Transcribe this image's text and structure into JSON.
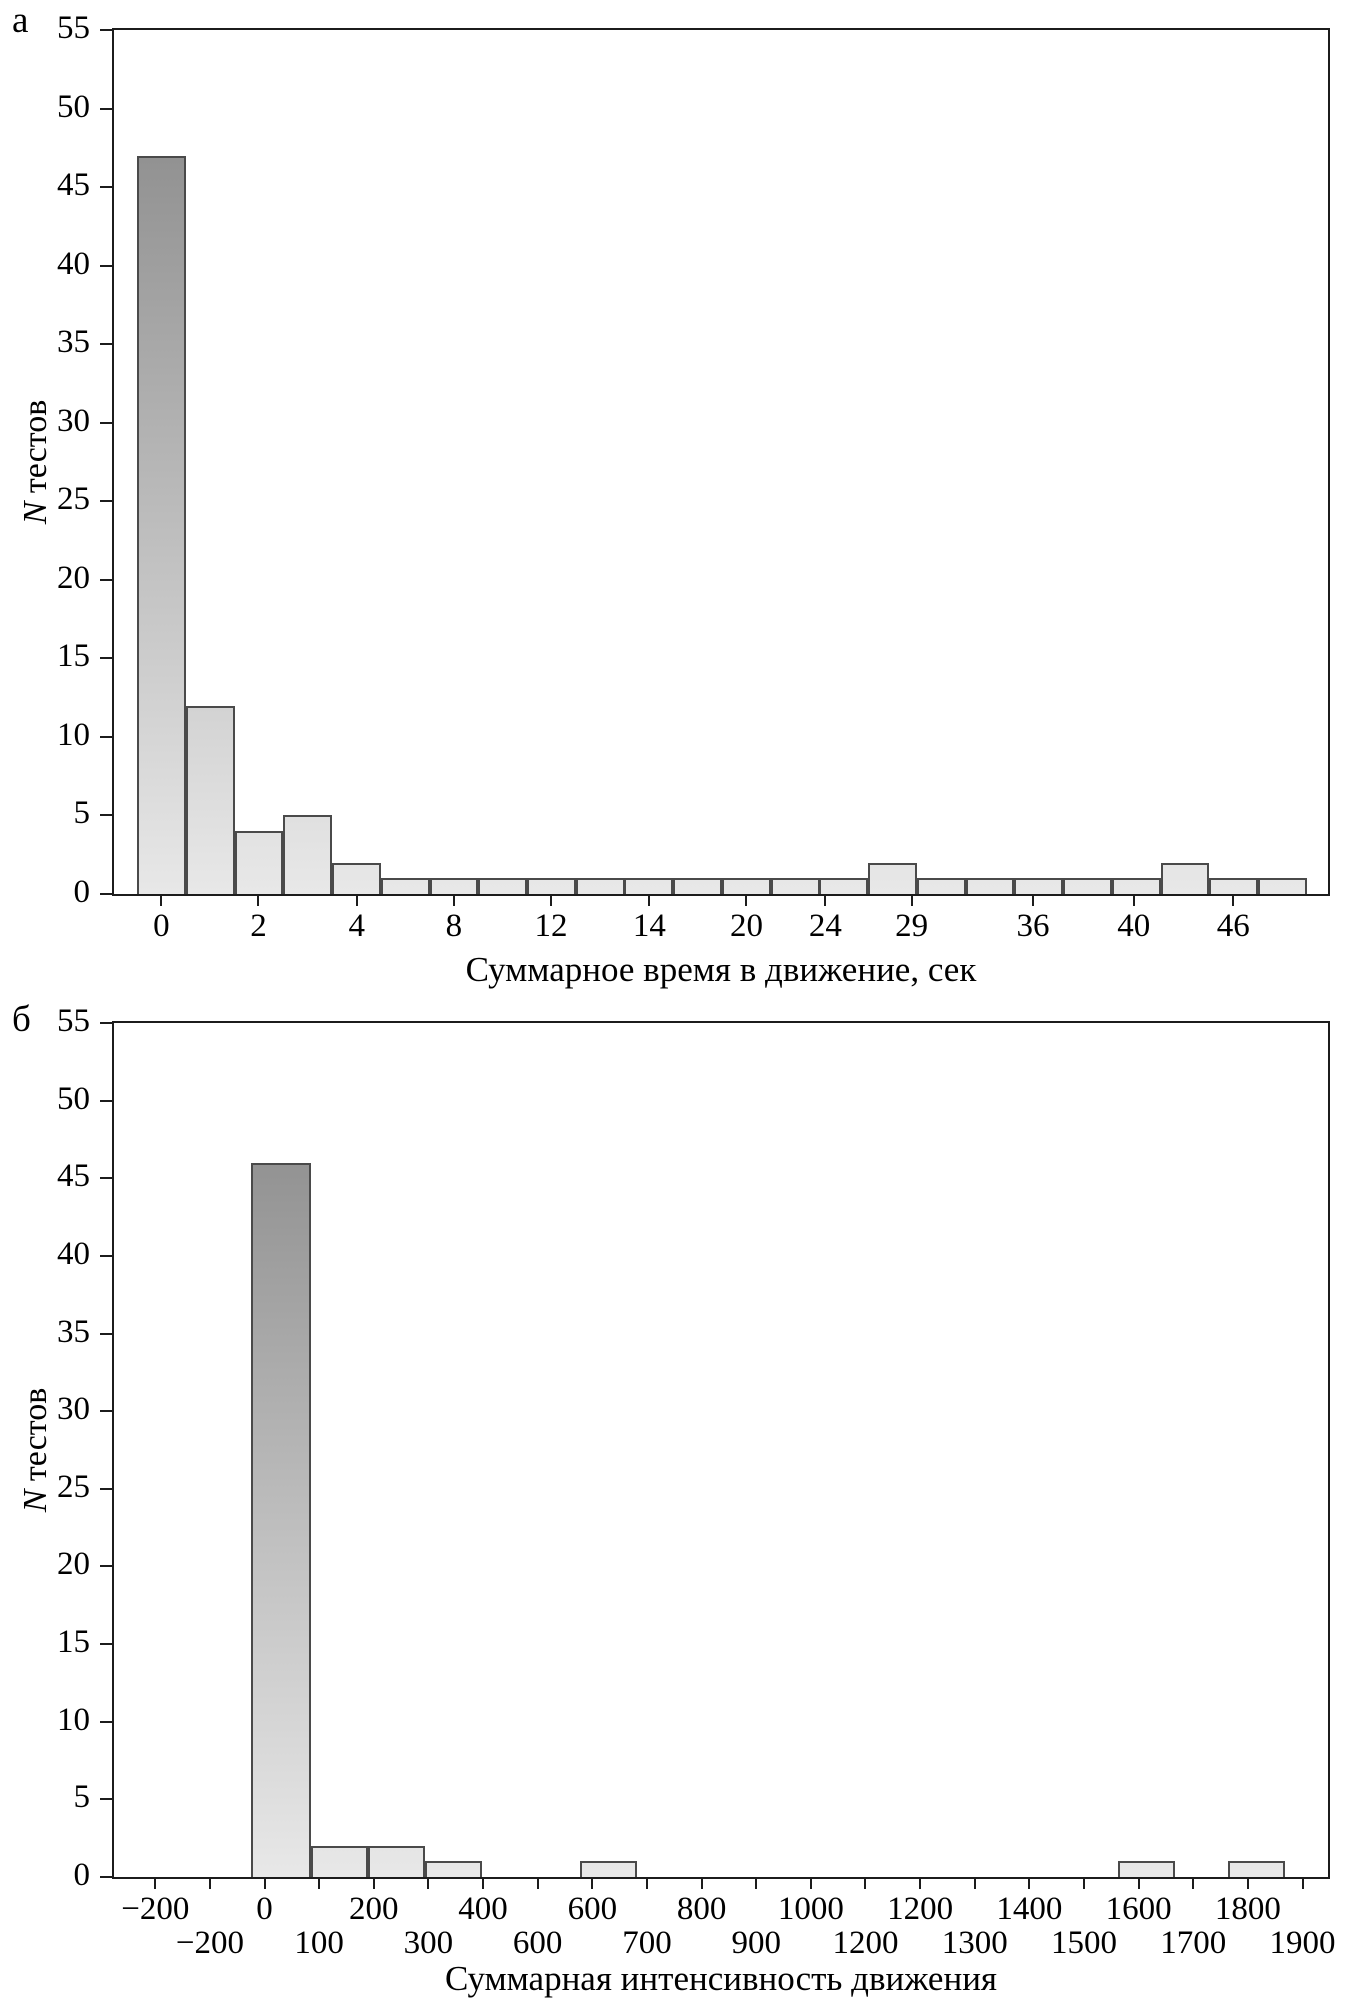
{
  "figure": {
    "panels": [
      {
        "panel_label": "а",
        "ylabel_italic": "N",
        "ylabel_rest": " тестов",
        "xlabel": "Суммарное время в движение, сек",
        "ymax": 55,
        "yticks": [
          0,
          5,
          10,
          15,
          20,
          25,
          30,
          35,
          40,
          45,
          50,
          55
        ],
        "bar_width": 4.016,
        "bars": [
          {
            "x": 1.9,
            "h": 47
          },
          {
            "x": 5.92,
            "h": 12
          },
          {
            "x": 9.93,
            "h": 4
          },
          {
            "x": 13.95,
            "h": 5
          },
          {
            "x": 17.96,
            "h": 2
          },
          {
            "x": 21.98,
            "h": 1
          },
          {
            "x": 25.99,
            "h": 1
          },
          {
            "x": 30.01,
            "h": 1
          },
          {
            "x": 34.02,
            "h": 1
          },
          {
            "x": 38.04,
            "h": 1
          },
          {
            "x": 42.05,
            "h": 1
          },
          {
            "x": 46.07,
            "h": 1
          },
          {
            "x": 50.08,
            "h": 1
          },
          {
            "x": 54.1,
            "h": 1
          },
          {
            "x": 58.11,
            "h": 1
          },
          {
            "x": 62.13,
            "h": 2
          },
          {
            "x": 66.14,
            "h": 1
          },
          {
            "x": 70.16,
            "h": 1
          },
          {
            "x": 74.17,
            "h": 1
          },
          {
            "x": 78.19,
            "h": 1
          },
          {
            "x": 82.2,
            "h": 1
          },
          {
            "x": 86.22,
            "h": 2
          },
          {
            "x": 90.23,
            "h": 1
          },
          {
            "x": 94.25,
            "h": 1
          }
        ],
        "xticks": [
          {
            "t": "0",
            "x": 3.9,
            "row": 1
          },
          {
            "t": "2",
            "x": 11.9,
            "row": 1
          },
          {
            "t": "4",
            "x": 20.0,
            "row": 1
          },
          {
            "t": "8",
            "x": 28.0,
            "row": 1
          },
          {
            "t": "12",
            "x": 36.0,
            "row": 1
          },
          {
            "t": "14",
            "x": 44.1,
            "row": 1
          },
          {
            "t": "20",
            "x": 52.1,
            "row": 1
          },
          {
            "t": "24",
            "x": 58.6,
            "row": 1
          },
          {
            "t": "29",
            "x": 65.7,
            "row": 1
          },
          {
            "t": "36",
            "x": 75.7,
            "row": 1
          },
          {
            "t": "40",
            "x": 84.0,
            "row": 1
          },
          {
            "t": "46",
            "x": 92.2,
            "row": 1
          }
        ]
      },
      {
        "panel_label": "б",
        "ylabel_italic": "N",
        "ylabel_rest": " тестов",
        "xlabel": "Суммарная интенсивность движения",
        "ymax": 55,
        "yticks": [
          0,
          5,
          10,
          15,
          20,
          25,
          30,
          35,
          40,
          45,
          50,
          55
        ],
        "bar_width": 4.7,
        "bars": [
          {
            "x": 11.3,
            "w": 4.9,
            "h": 46
          },
          {
            "x": 16.2,
            "h": 2
          },
          {
            "x": 20.9,
            "h": 2
          },
          {
            "x": 25.6,
            "h": 1
          },
          {
            "x": 38.4,
            "h": 1
          },
          {
            "x": 82.7,
            "h": 1
          },
          {
            "x": 91.8,
            "h": 1
          }
        ],
        "xticks": [
          {
            "t": "−200",
            "x": 3.4,
            "row": 1
          },
          {
            "t": "−200",
            "x": 7.9,
            "row": 2
          },
          {
            "t": "0",
            "x": 12.4,
            "row": 1
          },
          {
            "t": "100",
            "x": 16.9,
            "row": 2
          },
          {
            "t": "200",
            "x": 21.4,
            "row": 1
          },
          {
            "t": "300",
            "x": 25.9,
            "row": 2
          },
          {
            "t": "400",
            "x": 30.4,
            "row": 1
          },
          {
            "t": "600",
            "x": 34.9,
            "row": 2
          },
          {
            "t": "600",
            "x": 39.4,
            "row": 1
          },
          {
            "t": "700",
            "x": 43.9,
            "row": 2
          },
          {
            "t": "800",
            "x": 48.4,
            "row": 1
          },
          {
            "t": "900",
            "x": 52.9,
            "row": 2
          },
          {
            "t": "1000",
            "x": 57.4,
            "row": 1
          },
          {
            "t": "1200",
            "x": 61.9,
            "row": 2
          },
          {
            "t": "1200",
            "x": 66.4,
            "row": 1
          },
          {
            "t": "1300",
            "x": 70.9,
            "row": 2
          },
          {
            "t": "1400",
            "x": 75.4,
            "row": 1
          },
          {
            "t": "1500",
            "x": 79.9,
            "row": 2
          },
          {
            "t": "1600",
            "x": 84.4,
            "row": 1
          },
          {
            "t": "1700",
            "x": 88.9,
            "row": 2
          },
          {
            "t": "1800",
            "x": 93.4,
            "row": 1
          },
          {
            "t": "1900",
            "x": 97.9,
            "row": 2
          }
        ]
      }
    ]
  },
  "chart_data": [
    {
      "type": "bar",
      "panel": "а",
      "title": "",
      "xlabel": "Суммарное время в движение, сек",
      "ylabel": "N тестов",
      "ylim": [
        0,
        55
      ],
      "grid": false,
      "legend": false,
      "x_tick_labels": [
        "0",
        "2",
        "4",
        "8",
        "12",
        "14",
        "20",
        "24",
        "29",
        "36",
        "40",
        "46"
      ],
      "bin_counts": [
        47,
        12,
        4,
        5,
        2,
        1,
        1,
        1,
        1,
        1,
        1,
        1,
        1,
        1,
        1,
        2,
        1,
        1,
        1,
        1,
        1,
        2,
        1,
        1
      ]
    },
    {
      "type": "bar",
      "panel": "б",
      "title": "",
      "xlabel": "Суммарная интенсивность движения",
      "ylabel": "N тестов",
      "ylim": [
        0,
        55
      ],
      "grid": false,
      "legend": false,
      "x_tick_labels_row1": [
        "−200",
        "0",
        "200",
        "400",
        "600",
        "800",
        "1000",
        "1200",
        "1400",
        "1600",
        "1800"
      ],
      "x_tick_labels_row2": [
        "−200",
        "100",
        "300",
        "600",
        "700",
        "900",
        "1200",
        "1300",
        "1500",
        "1700",
        "1900"
      ],
      "bars": [
        {
          "x": "0–100",
          "count": 46
        },
        {
          "x": "100–200",
          "count": 2
        },
        {
          "x": "200–300",
          "count": 2
        },
        {
          "x": "300–400",
          "count": 1
        },
        {
          "x": "600",
          "count": 1
        },
        {
          "x": "1600",
          "count": 1
        },
        {
          "x": "1800",
          "count": 1
        }
      ]
    }
  ]
}
